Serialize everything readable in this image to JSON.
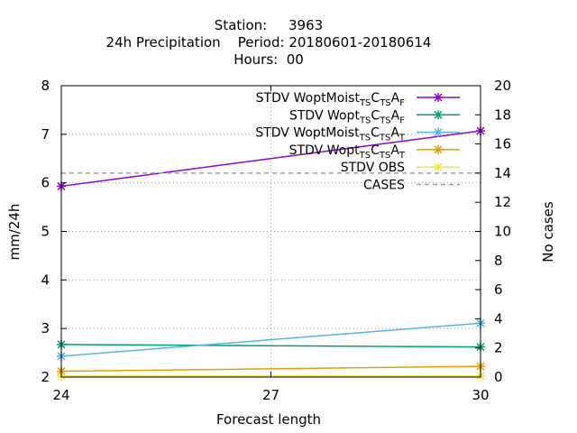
{
  "chart_data": {
    "type": "line",
    "title_lines": [
      "Station:     3963",
      "24h Precipitation    Period: 20180601-20180614",
      "Hours:  00"
    ],
    "xlabel": "Forecast length",
    "ylabel": "mm/24h",
    "y2label": "No cases",
    "x_ticks": [
      "24",
      "27",
      "30"
    ],
    "y_ticks": [
      "2",
      "3",
      "4",
      "5",
      "6",
      "7",
      "8"
    ],
    "y2_ticks": [
      "0",
      "2",
      "4",
      "6",
      "8",
      "10",
      "12",
      "14",
      "16",
      "18",
      "20"
    ],
    "xlim": [
      24,
      30
    ],
    "ylim": [
      2,
      8
    ],
    "y2lim": [
      0,
      20
    ],
    "grid": true,
    "legend_position": "top-right",
    "series": [
      {
        "name": "STDV WoptMoist",
        "sub1": "TS",
        "letter": "C",
        "sub2": "TS",
        "letter2": "A",
        "sub3": "F",
        "color": "#9400d3",
        "marker": "cross-star",
        "axis": "y",
        "x": [
          24,
          30
        ],
        "y": [
          5.93,
          7.07
        ]
      },
      {
        "name": "STDV Wopt",
        "sub1": "TS",
        "letter": "C",
        "sub2": "TS",
        "letter2": "A",
        "sub3": "F",
        "color": "#009e73",
        "marker": "cross-star",
        "axis": "y",
        "x": [
          24,
          30
        ],
        "y": [
          2.67,
          2.62
        ]
      },
      {
        "name": "STDV WoptMoist",
        "sub1": "TS",
        "letter": "C",
        "sub2": "TS",
        "letter2": "A",
        "sub3": "T",
        "color": "#56b4e9",
        "marker": "cross-star",
        "axis": "y",
        "x": [
          24,
          30
        ],
        "y": [
          2.43,
          3.11
        ]
      },
      {
        "name": "STDV Wopt",
        "sub1": "TS",
        "letter": "C",
        "sub2": "TS",
        "letter2": "A",
        "sub3": "T",
        "color": "#e69f00",
        "marker": "cross-star",
        "axis": "y",
        "x": [
          24,
          30
        ],
        "y": [
          2.12,
          2.22
        ]
      },
      {
        "name": "STDV OBS",
        "color": "#f0e442",
        "marker": "cross-star",
        "axis": "y",
        "x": [
          24,
          30
        ],
        "y": [
          2.02,
          2.02
        ]
      },
      {
        "name": "CASES",
        "color": "#a0a0a0",
        "marker": "none",
        "dashed": true,
        "axis": "y2",
        "x": [
          24,
          30
        ],
        "y": [
          14,
          14
        ]
      }
    ]
  }
}
